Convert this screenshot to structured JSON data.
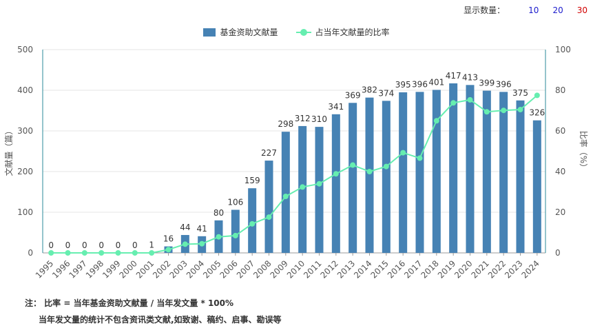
{
  "topbar": {
    "label": "显示数量：",
    "options": [
      "10",
      "20",
      "30"
    ]
  },
  "chart_data": {
    "type": "bar+line",
    "categories": [
      "1995",
      "1996",
      "1997",
      "1998",
      "1999",
      "2000",
      "2001",
      "2002",
      "2003",
      "2004",
      "2005",
      "2006",
      "2007",
      "2008",
      "2009",
      "2010",
      "2011",
      "2012",
      "2013",
      "2014",
      "2015",
      "2016",
      "2017",
      "2018",
      "2019",
      "2020",
      "2021",
      "2022",
      "2023",
      "2024"
    ],
    "series": [
      {
        "name": "基金资助文献量",
        "type": "bar",
        "axis": "left",
        "color": "#4682b4",
        "values": [
          0,
          0,
          0,
          0,
          0,
          0,
          1,
          16,
          44,
          41,
          80,
          106,
          159,
          227,
          298,
          312,
          310,
          341,
          369,
          382,
          374,
          395,
          396,
          401,
          417,
          413,
          399,
          396,
          375,
          326
        ]
      },
      {
        "name": "占当年文献量的比率",
        "type": "line",
        "axis": "right",
        "color": "#66eeb0",
        "values": [
          0,
          0,
          0,
          0,
          0,
          0,
          0,
          1.6,
          4.3,
          4.5,
          7.9,
          8.5,
          14.3,
          17.6,
          27.8,
          32.4,
          34,
          38.9,
          43.2,
          40,
          42.5,
          49.3,
          46.6,
          65,
          73.8,
          75.3,
          69.4,
          70.1,
          70.5,
          77.5
        ]
      }
    ],
    "ylabel_left": "文献量（篇）",
    "ylabel_right": "比率（%）",
    "ylim_left": [
      0,
      500
    ],
    "ylim_right": [
      0,
      100
    ],
    "yticks_left": [
      "0",
      "100",
      "200",
      "300",
      "400",
      "500"
    ],
    "yticks_right": [
      "0",
      "20",
      "40",
      "60",
      "80",
      "100"
    ],
    "grid": true,
    "legend": "top-center"
  },
  "notes": {
    "line1": "注：  比率 = 当年基金资助文献量 / 当年发文量 * 100%",
    "line2": "当年发文量的统计不包含资讯类文献,如致谢、稿约、启事、勘误等"
  }
}
